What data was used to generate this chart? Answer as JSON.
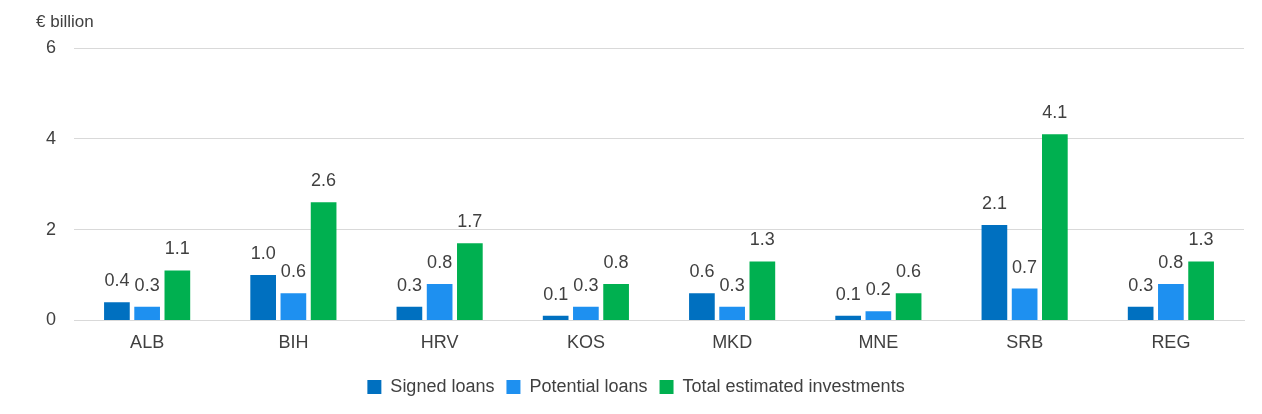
{
  "chart_data": {
    "type": "bar",
    "ylabel": "€ billion",
    "categories": [
      "ALB",
      "BIH",
      "HRV",
      "KOS",
      "MKD",
      "MNE",
      "SRB",
      "REG"
    ],
    "series": [
      {
        "name": "Signed loans",
        "color": "#0070c0",
        "values": [
          0.4,
          1.0,
          0.3,
          0.1,
          0.6,
          0.1,
          2.1,
          0.3
        ],
        "value_labels": [
          "0.4",
          "1.0",
          "0.3",
          "0.1",
          "0.6",
          "0.1",
          "2.1",
          "0.3"
        ]
      },
      {
        "name": "Potential loans",
        "color": "#1e90f0",
        "values": [
          0.3,
          0.6,
          0.8,
          0.3,
          0.3,
          0.2,
          0.7,
          0.8
        ],
        "value_labels": [
          "0.3",
          "0.6",
          "0.8",
          "0.3",
          "0.3",
          "0.2",
          "0.7",
          "0.8"
        ]
      },
      {
        "name": "Total estimated investments",
        "color": "#00b050",
        "values": [
          1.1,
          2.6,
          1.7,
          0.8,
          1.3,
          0.6,
          4.1,
          1.3
        ],
        "value_labels": [
          "1.1",
          "2.6",
          "1.7",
          "0.8",
          "1.3",
          "0.6",
          "4.1",
          "1.3"
        ]
      }
    ],
    "ylim": [
      0,
      6
    ],
    "yticks": [
      0,
      2,
      4,
      6
    ],
    "grid": "y",
    "legend": "bottom"
  }
}
